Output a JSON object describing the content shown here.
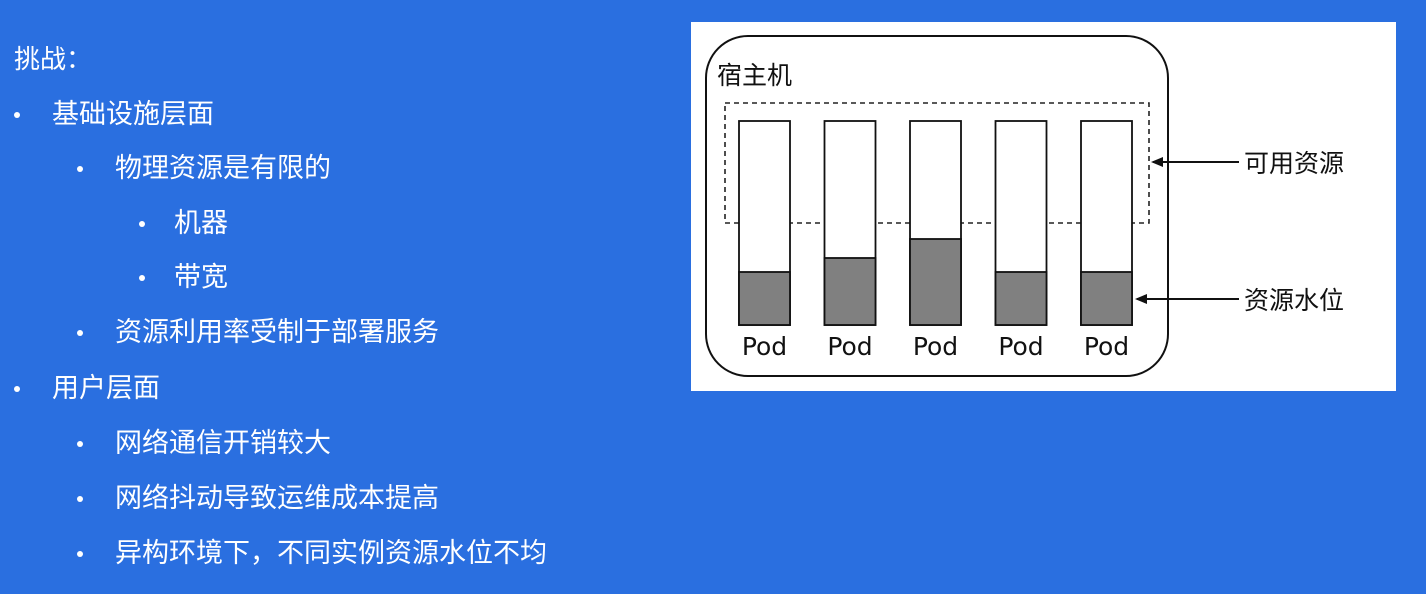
{
  "slide": {
    "heading": "挑战：",
    "bullets": [
      {
        "text": "基础设施层面",
        "level": 1
      },
      {
        "text": "物理资源是有限的",
        "level": 2
      },
      {
        "text": "机器",
        "level": 3
      },
      {
        "text": "带宽",
        "level": 3
      },
      {
        "text": "资源利用率受制于部署服务",
        "level": 2
      },
      {
        "text": "用户层面",
        "level": 1
      },
      {
        "text": "网络通信开销较大",
        "level": 2
      },
      {
        "text": "网络抖动导致运维成本提高",
        "level": 2
      },
      {
        "text": "异构环境下，不同实例资源水位不均",
        "level": 2
      }
    ]
  },
  "diagram": {
    "host_label": "宿主机",
    "available_label": "可用资源",
    "water_level_label": "资源水位",
    "pods": [
      {
        "label": "Pod",
        "level": 0.26
      },
      {
        "label": "Pod",
        "level": 0.33
      },
      {
        "label": "Pod",
        "level": 0.42
      },
      {
        "label": "Pod",
        "level": 0.26
      },
      {
        "label": "Pod",
        "level": 0.26
      }
    ],
    "colors": {
      "background": "#2a6fe0",
      "panel": "#ffffff",
      "fill": "#808080",
      "stroke": "#111111"
    }
  }
}
